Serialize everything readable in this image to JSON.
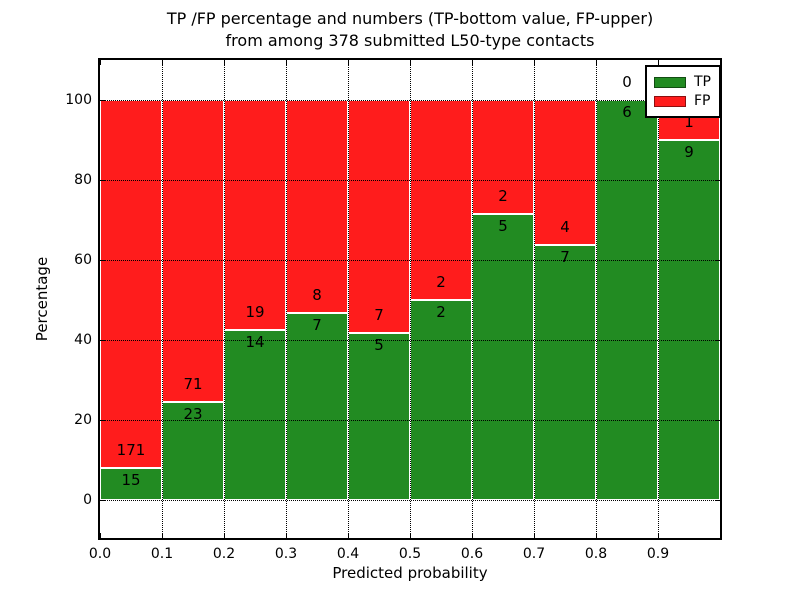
{
  "chart_data": {
    "type": "bar",
    "variant": "stacked-percent-histogram",
    "title_lines": [
      "TP /FP percentage and numbers (TP-bottom value, FP-upper)",
      "from among 378 submitted L50-type contacts"
    ],
    "xlabel": "Predicted probability",
    "ylabel": "Percentage",
    "bin_edges": [
      0.0,
      0.1,
      0.2,
      0.3,
      0.4,
      0.5,
      0.6,
      0.7,
      0.8,
      0.9,
      1.0
    ],
    "series": [
      {
        "name": "TP",
        "color": "#228b22",
        "counts": [
          15,
          23,
          14,
          7,
          5,
          2,
          5,
          7,
          6,
          9
        ]
      },
      {
        "name": "FP",
        "color": "#ff1c1c",
        "counts": [
          171,
          71,
          19,
          8,
          7,
          2,
          2,
          4,
          0,
          1
        ]
      }
    ],
    "tp_percent_of_bin": [
      8.1,
      24.5,
      42.4,
      46.7,
      41.7,
      50.0,
      71.4,
      63.6,
      100.0,
      90.0
    ],
    "xticks": [
      "0.0",
      "0.1",
      "0.2",
      "0.3",
      "0.4",
      "0.5",
      "0.6",
      "0.7",
      "0.8",
      "0.9"
    ],
    "yticks": [
      "0",
      "20",
      "40",
      "60",
      "80",
      "100"
    ],
    "ytick_values": [
      0,
      20,
      40,
      60,
      80,
      100
    ],
    "xlim": [
      0.0,
      1.0
    ],
    "ylim": [
      -10,
      110
    ],
    "grid": {
      "style": "dotted",
      "color": "#000000",
      "above_bars": true
    },
    "bar_edge_color": "#ffffff",
    "legend": {
      "position": "upper-right",
      "entries": [
        {
          "label": "TP",
          "color": "#228b22"
        },
        {
          "label": "FP",
          "color": "#ff1c1c"
        }
      ]
    }
  }
}
